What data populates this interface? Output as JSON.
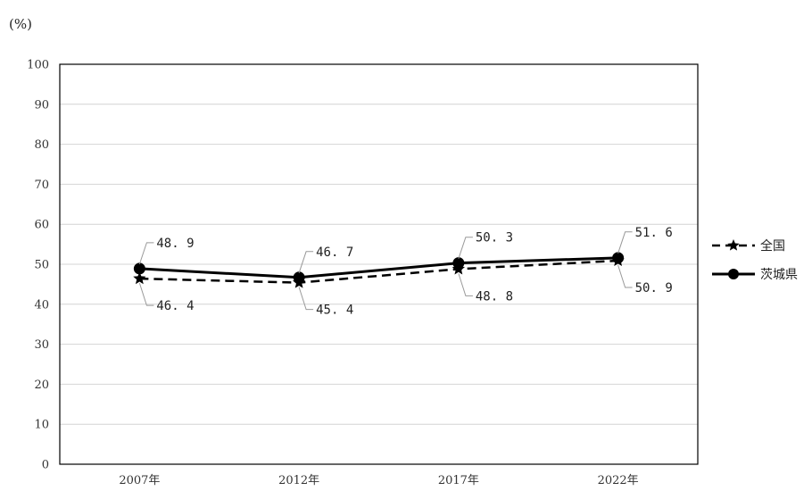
{
  "chart_data": {
    "type": "line",
    "unit_label": "(%)",
    "categories": [
      "2007年",
      "2012年",
      "2017年",
      "2022年"
    ],
    "ylim": [
      0,
      100
    ],
    "yticks": [
      "0",
      "10",
      "20",
      "30",
      "40",
      "50",
      "60",
      "70",
      "80",
      "90",
      "100"
    ],
    "grid": true,
    "legend_position": "right",
    "series": [
      {
        "name": "全国",
        "values": [
          46.4,
          45.4,
          48.8,
          50.9
        ],
        "labels": [
          "46. 4",
          "45. 4",
          "48. 8",
          "50. 9"
        ],
        "color": "#000000",
        "line_style": "dashed",
        "marker": "star-triangle-icon"
      },
      {
        "name": "茨城県",
        "values": [
          48.9,
          46.7,
          50.3,
          51.6
        ],
        "labels": [
          "48. 9",
          "46. 7",
          "50. 3",
          "51. 6"
        ],
        "color": "#000000",
        "line_style": "solid",
        "marker": "circle-icon"
      }
    ]
  }
}
